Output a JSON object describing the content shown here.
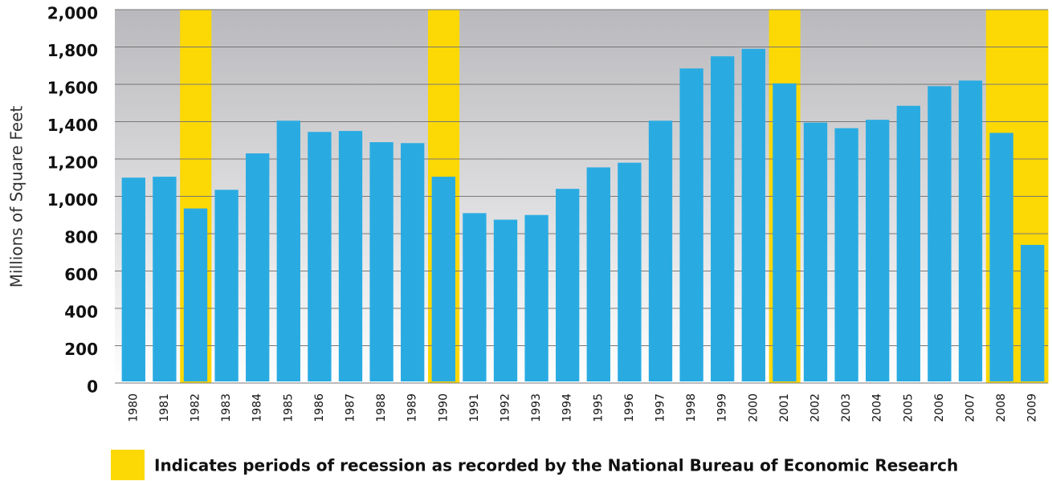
{
  "chart_data": {
    "type": "bar",
    "y_label": "Millions of Square Feet",
    "categories": [
      "1980",
      "1981",
      "1982",
      "1983",
      "1984",
      "1985",
      "1986",
      "1987",
      "1988",
      "1989",
      "1990",
      "1991",
      "1992",
      "1993",
      "1994",
      "1995",
      "1996",
      "1997",
      "1998",
      "1999",
      "2000",
      "2001",
      "2002",
      "2003",
      "2004",
      "2005",
      "2006",
      "2007",
      "2008",
      "2009"
    ],
    "values": [
      1100,
      1105,
      935,
      1035,
      1230,
      1405,
      1345,
      1350,
      1290,
      1285,
      1105,
      910,
      875,
      900,
      1040,
      1155,
      1180,
      1405,
      1685,
      1750,
      1790,
      1605,
      1395,
      1365,
      1410,
      1485,
      1590,
      1620,
      1340,
      740
    ],
    "color": "#29abe2",
    "recessions": [
      "1982",
      "1990",
      "2001",
      "2008",
      "2009"
    ],
    "recession_color": "#fcd804",
    "legend": "Indicates periods of recession as recorded by the National Bureau of Economic Research",
    "ylim": [
      0,
      2000
    ],
    "yticks": [
      0,
      200,
      400,
      600,
      800,
      {
        "value": 1000,
        "label": "1,000"
      },
      {
        "value": 1200,
        "label": "1,200"
      },
      {
        "value": 1400,
        "label": "1,400"
      },
      {
        "value": 1600,
        "label": "1,600"
      },
      {
        "value": 1800,
        "label": "1,800"
      },
      {
        "value": 2000,
        "label": "2,000"
      }
    ],
    "grid": true
  }
}
